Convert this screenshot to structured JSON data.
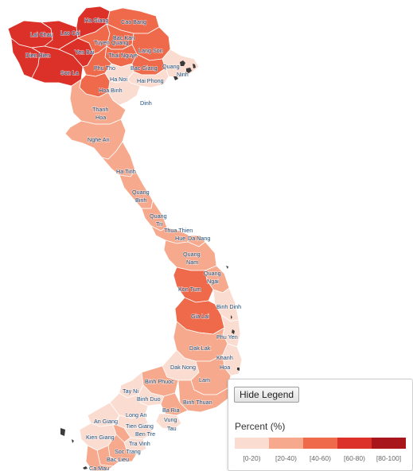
{
  "legend": {
    "button_label": "Hide Legend",
    "title": "Percent (%)",
    "bins": [
      {
        "label": "[0-20)",
        "color": "#fbdcd0"
      },
      {
        "label": "[20-40)",
        "color": "#f6a98c"
      },
      {
        "label": "[40-60)",
        "color": "#ee6a4b"
      },
      {
        "label": "[60-80)",
        "color": "#dc3128"
      },
      {
        "label": "[80-100]",
        "color": "#a8161c"
      }
    ]
  },
  "map": {
    "land_color": "#f6a98c",
    "outline_color": "#555555",
    "province_labels": [
      "Ha Giang",
      "Cao Bang",
      "Lai Chau",
      "Lao Cai",
      "Tuyen Quang",
      "Bac Kan",
      "Dien Bien",
      "Yen Bai",
      "Lang Son",
      "Thai Nguye",
      "Son La",
      "Phu Tho",
      "Bac Giang",
      "Quang",
      "Ha Noi",
      "Hai Phong",
      "Hoa Binh",
      "Ninh",
      "Dinh",
      "Thanh",
      "Hoa",
      "Nghe An",
      "Ha Tinh",
      "Quang",
      "Binh",
      "Quang",
      "Tri",
      "Thua Thien",
      "Hue",
      "Da Nang",
      "Quang",
      "Nam",
      "Quang",
      "Ngai",
      "Kon Tum",
      "Binh Dinh",
      "Gia Lai",
      "Phu Yen",
      "Dak Lak",
      "Khanh",
      "Hoa",
      "Dak Nong",
      "Lam",
      "Binh Phuoc",
      "Tay Ni",
      "Binh Duo",
      "Binh Thuan",
      "Long An",
      "Ba Ria",
      "Vung",
      "Tau",
      "An Giang",
      "Tien Giang",
      "Ben Tre",
      "Kien Giang",
      "Tra Vinh",
      "Soc Trang",
      "Bac Lieu",
      "Ca Mau"
    ]
  }
}
